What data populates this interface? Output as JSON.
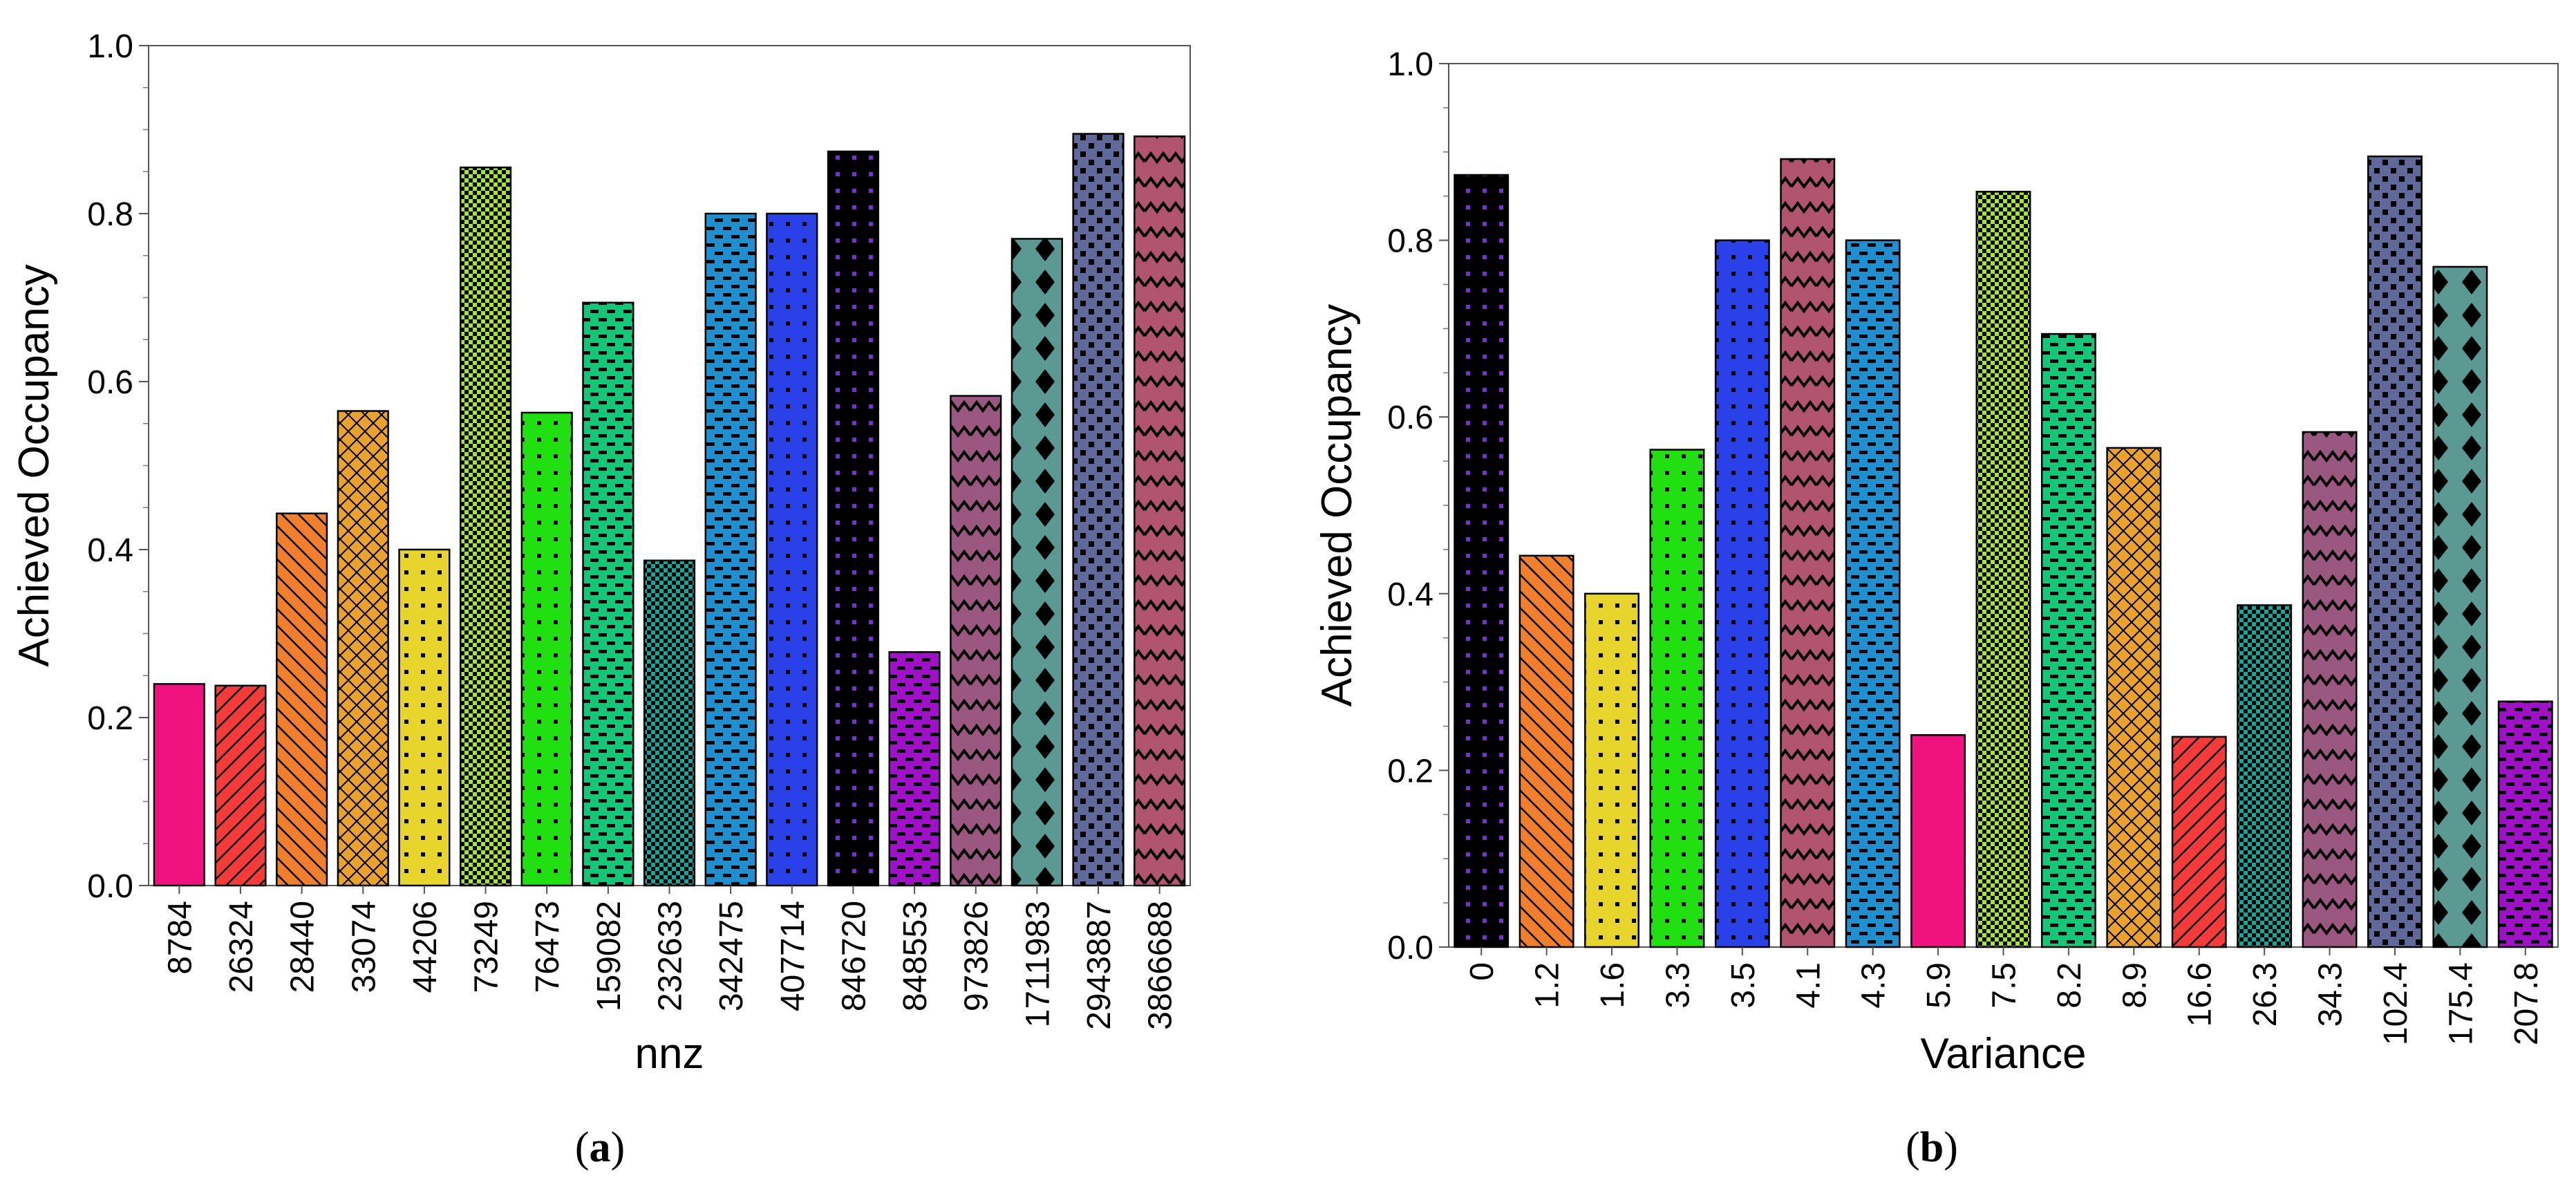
{
  "chart_data": [
    {
      "type": "bar",
      "caption": "a",
      "xlabel": "nnz",
      "ylabel": "Achieved Occupancy",
      "ylim": [
        0,
        1.0
      ],
      "yticks": [
        "0.0",
        "0.2",
        "0.4",
        "0.6",
        "0.8",
        "1.0"
      ],
      "categories": [
        "8784",
        "26324",
        "28440",
        "33074",
        "44206",
        "73249",
        "76473",
        "159082",
        "232633",
        "342475",
        "407714",
        "846720",
        "848553",
        "973826",
        "1711983",
        "2943887",
        "3866688"
      ],
      "values": [
        0.24,
        0.238,
        0.443,
        0.565,
        0.4,
        0.855,
        0.563,
        0.694,
        0.387,
        0.8,
        0.8,
        0.874,
        0.278,
        0.583,
        0.77,
        0.895,
        0.892
      ],
      "colors": [
        "#f0127f",
        "#f53b37",
        "#f07f2c",
        "#e8a32c",
        "#e8d52c",
        "#a4e82b",
        "#20e010",
        "#10c878",
        "#12a89a",
        "#1e90d0",
        "#2a40e8",
        "#000000",
        "#a010c8",
        "#9a5880",
        "#5a9a92",
        "#606a9a",
        "#b05470"
      ],
      "patterns": [
        "solid",
        "diag-fwd",
        "diag-back",
        "cross",
        "dots",
        "check",
        "dots",
        "dashes",
        "checkfine",
        "dashes",
        "dots",
        "dots",
        "dashes",
        "zigzag",
        "diamonds",
        "squares",
        "zigzag"
      ]
    },
    {
      "type": "bar",
      "caption": "b",
      "xlabel": "Variance",
      "ylabel": "Achieved Occupancy",
      "ylim": [
        0,
        1.0
      ],
      "yticks": [
        "0.0",
        "0.2",
        "0.4",
        "0.6",
        "0.8",
        "1.0"
      ],
      "categories": [
        "0",
        "1.2",
        "1.6",
        "3.3",
        "3.5",
        "4.1",
        "4.3",
        "5.9",
        "7.5",
        "8.2",
        "8.9",
        "16.6",
        "26.3",
        "34.3",
        "102.4",
        "175.4",
        "207.8"
      ],
      "values": [
        0.874,
        0.443,
        0.4,
        0.563,
        0.8,
        0.892,
        0.8,
        0.24,
        0.855,
        0.694,
        0.565,
        0.238,
        0.387,
        0.583,
        0.895,
        0.77,
        0.278
      ],
      "colors": [
        "#000000",
        "#f07f2c",
        "#e8d52c",
        "#20e010",
        "#2a40e8",
        "#b05470",
        "#1e90d0",
        "#f0127f",
        "#a4e82b",
        "#10c878",
        "#e8a32c",
        "#f53b37",
        "#12a89a",
        "#9a5880",
        "#606a9a",
        "#5a9a92",
        "#a010c8"
      ],
      "patterns": [
        "dots",
        "diag-back",
        "dots",
        "dots",
        "dots",
        "zigzag",
        "dashes",
        "solid",
        "check",
        "dashes",
        "cross",
        "diag-fwd",
        "checkfine",
        "zigzag",
        "squares",
        "diamonds",
        "dashes"
      ]
    }
  ]
}
